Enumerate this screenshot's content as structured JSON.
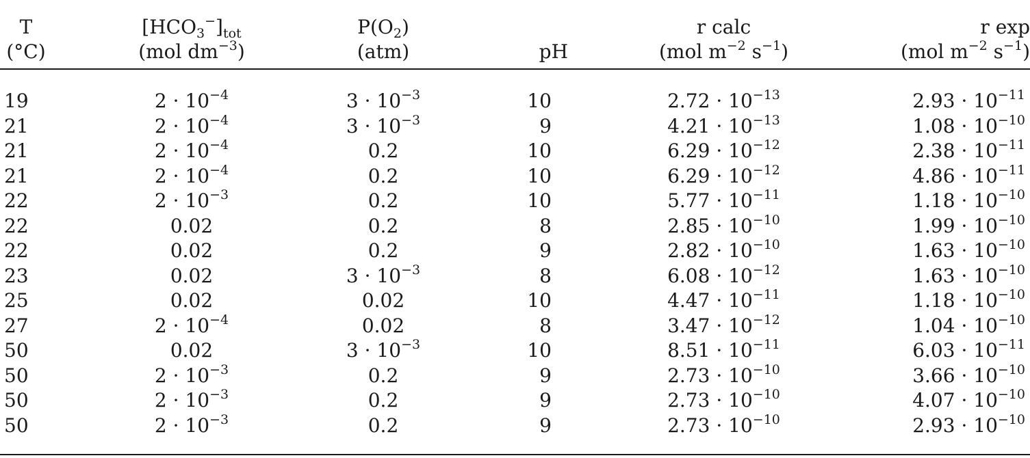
{
  "table": {
    "headers": {
      "T": [
        "T",
        "(°C)"
      ],
      "hco3": [
        "[HCO3−]tot",
        "(mol dm−3)"
      ],
      "po2": [
        "P(O2)",
        "(atm)"
      ],
      "ph": [
        "pH"
      ],
      "rcalc": [
        "r calc",
        "(mol m−2 s−1)"
      ],
      "rexp": [
        "r exp",
        "(mol m−2 s−1)"
      ]
    },
    "rows": [
      {
        "T": "19",
        "hco3": "2 · 10−4",
        "po2": "3 · 10−3",
        "ph": "10",
        "rcalc": "2.72 · 10−13",
        "rexp": "2.93 · 10−11"
      },
      {
        "T": "21",
        "hco3": "2 · 10−4",
        "po2": "3 · 10−3",
        "ph": "9",
        "rcalc": "4.21 · 10−13",
        "rexp": "1.08 · 10−10"
      },
      {
        "T": "21",
        "hco3": "2 · 10−4",
        "po2": "0.2",
        "ph": "10",
        "rcalc": "6.29 · 10−12",
        "rexp": "2.38 · 10−11"
      },
      {
        "T": "21",
        "hco3": "2 · 10−4",
        "po2": "0.2",
        "ph": "10",
        "rcalc": "6.29 · 10−12",
        "rexp": "4.86 · 10−11"
      },
      {
        "T": "22",
        "hco3": "2 · 10−3",
        "po2": "0.2",
        "ph": "10",
        "rcalc": "5.77 · 10−11",
        "rexp": "1.18 · 10−10"
      },
      {
        "T": "22",
        "hco3": "0.02",
        "po2": "0.2",
        "ph": "8",
        "rcalc": "2.85 · 10−10",
        "rexp": "1.99 · 10−10"
      },
      {
        "T": "22",
        "hco3": "0.02",
        "po2": "0.2",
        "ph": "9",
        "rcalc": "2.82 · 10−10",
        "rexp": "1.63 · 10−10"
      },
      {
        "T": "23",
        "hco3": "0.02",
        "po2": "3 · 10−3",
        "ph": "8",
        "rcalc": "6.08 · 10−12",
        "rexp": "1.63 · 10−10"
      },
      {
        "T": "25",
        "hco3": "0.02",
        "po2": "0.02",
        "ph": "10",
        "rcalc": "4.47 · 10−11",
        "rexp": "1.18 · 10−10"
      },
      {
        "T": "27",
        "hco3": "2 · 10−4",
        "po2": "0.02",
        "ph": "8",
        "rcalc": "3.47 · 10−12",
        "rexp": "1.04 · 10−10"
      },
      {
        "T": "50",
        "hco3": "0.02",
        "po2": "3 · 10−3",
        "ph": "10",
        "rcalc": "8.51 · 10−11",
        "rexp": "6.03 · 10−11"
      },
      {
        "T": "50",
        "hco3": "2 · 10−3",
        "po2": "0.2",
        "ph": "9",
        "rcalc": "2.73 · 10−10",
        "rexp": "3.66 · 10−10"
      },
      {
        "T": "50",
        "hco3": "2 · 10−3",
        "po2": "0.2",
        "ph": "9",
        "rcalc": "2.73 · 10−10",
        "rexp": "4.07 · 10−10"
      },
      {
        "T": "50",
        "hco3": "2 · 10−3",
        "po2": "0.2",
        "ph": "9",
        "rcalc": "2.73 · 10−10",
        "rexp": "2.93 · 10−10"
      }
    ]
  }
}
